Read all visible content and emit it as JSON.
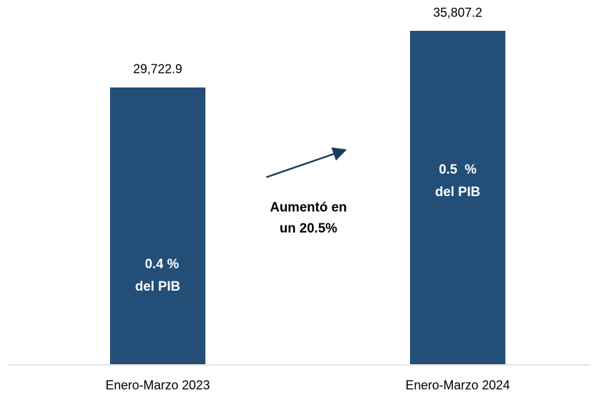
{
  "chart_data": {
    "type": "bar",
    "categories": [
      "Enero-Marzo 2023",
      "Enero-Marzo 2024"
    ],
    "values": [
      29722.9,
      35807.2
    ],
    "value_labels": [
      "29,722.9",
      "35,807.2"
    ],
    "inner_labels": [
      [
        "0.4 %",
        "del PIB"
      ],
      [
        "0.5  %",
        "del PIB"
      ]
    ],
    "annotation": [
      "Aumentó en",
      "un 20.5%"
    ],
    "color": "#234e78"
  }
}
